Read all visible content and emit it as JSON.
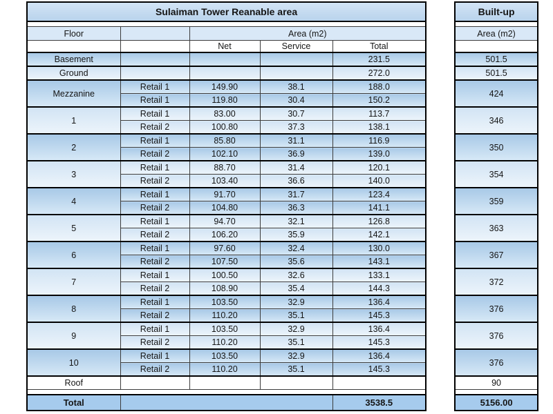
{
  "main": {
    "title": "Sulaiman Tower Reanable area",
    "headers": {
      "floor": "Floor",
      "area": "Area (m2)",
      "net": "Net",
      "service": "Service",
      "total": "Total"
    },
    "total_label": "Total",
    "total_value": "3538.5",
    "groups": [
      {
        "floor": "Basement",
        "shade": "dark",
        "builtup": "501.5",
        "rows": [
          [
            "",
            "",
            "",
            "231.5"
          ]
        ]
      },
      {
        "floor": "Ground",
        "shade": "light",
        "builtup": "501.5",
        "rows": [
          [
            "",
            "",
            "",
            "272.0"
          ]
        ]
      },
      {
        "floor": "Mezzanine",
        "shade": "dark",
        "builtup": "424",
        "rows": [
          [
            "Retail 1",
            "149.90",
            "38.1",
            "188.0"
          ],
          [
            "Retail 1",
            "119.80",
            "30.4",
            "150.2"
          ]
        ]
      },
      {
        "floor": "1",
        "shade": "light",
        "builtup": "346",
        "rows": [
          [
            "Retail 1",
            "83.00",
            "30.7",
            "113.7"
          ],
          [
            "Retail 2",
            "100.80",
            "37.3",
            "138.1"
          ]
        ]
      },
      {
        "floor": "2",
        "shade": "dark",
        "builtup": "350",
        "rows": [
          [
            "Retail 1",
            "85.80",
            "31.1",
            "116.9"
          ],
          [
            "Retail 2",
            "102.10",
            "36.9",
            "139.0"
          ]
        ]
      },
      {
        "floor": "3",
        "shade": "light",
        "builtup": "354",
        "rows": [
          [
            "Retail 1",
            "88.70",
            "31.4",
            "120.1"
          ],
          [
            "Retail 2",
            "103.40",
            "36.6",
            "140.0"
          ]
        ]
      },
      {
        "floor": "4",
        "shade": "dark",
        "builtup": "359",
        "rows": [
          [
            "Retail 1",
            "91.70",
            "31.7",
            "123.4"
          ],
          [
            "Retail 2",
            "104.80",
            "36.3",
            "141.1"
          ]
        ]
      },
      {
        "floor": "5",
        "shade": "light",
        "builtup": "363",
        "rows": [
          [
            "Retail 1",
            "94.70",
            "32.1",
            "126.8"
          ],
          [
            "Retail 2",
            "106.20",
            "35.9",
            "142.1"
          ]
        ]
      },
      {
        "floor": "6",
        "shade": "dark",
        "builtup": "367",
        "rows": [
          [
            "Retail 1",
            "97.60",
            "32.4",
            "130.0"
          ],
          [
            "Retail 2",
            "107.50",
            "35.6",
            "143.1"
          ]
        ]
      },
      {
        "floor": "7",
        "shade": "light",
        "builtup": "372",
        "rows": [
          [
            "Retail 1",
            "100.50",
            "32.6",
            "133.1"
          ],
          [
            "Retail 2",
            "108.90",
            "35.4",
            "144.3"
          ]
        ]
      },
      {
        "floor": "8",
        "shade": "dark",
        "builtup": "376",
        "rows": [
          [
            "Retail 1",
            "103.50",
            "32.9",
            "136.4"
          ],
          [
            "Retail 2",
            "110.20",
            "35.1",
            "145.3"
          ]
        ]
      },
      {
        "floor": "9",
        "shade": "light",
        "builtup": "376",
        "rows": [
          [
            "Retail 1",
            "103.50",
            "32.9",
            "136.4"
          ],
          [
            "Retail 2",
            "110.20",
            "35.1",
            "145.3"
          ]
        ]
      },
      {
        "floor": "10",
        "shade": "dark",
        "builtup": "376",
        "rows": [
          [
            "Retail 1",
            "103.50",
            "32.9",
            "136.4"
          ],
          [
            "Retail 2",
            "110.20",
            "35.1",
            "145.3"
          ]
        ]
      },
      {
        "floor": "Roof",
        "shade": "white",
        "builtup": "90",
        "rows": [
          [
            "",
            "",
            "",
            ""
          ]
        ]
      }
    ]
  },
  "builtup": {
    "title": "Built-up",
    "area_header": "Area (m2)",
    "total_value": "5156.00"
  },
  "colors": {
    "band_dark_top": "#a8c9e7",
    "band_dark_bottom": "#d6e8f6",
    "band_light_top": "#d2e4f4",
    "band_light_bottom": "#ecf4fb",
    "header_fill": "#d9e8f7",
    "title_fill": "#c5dcf1",
    "total_row_fill": "#a6cbed",
    "border": "#3b3b3b",
    "outer_border": "#000000"
  }
}
